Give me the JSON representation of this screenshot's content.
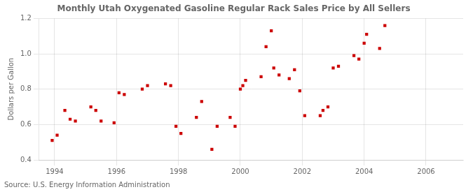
{
  "chart_data": {
    "type": "scatter",
    "title": "Monthly Utah Oxygenated Gasoline Regular Rack Sales Price by All Sellers",
    "ylabel": "Dollars per Gallon",
    "annotation": "Source: U.S. Energy Information Administration",
    "color": "#cc0000",
    "marker": "square",
    "grid": true,
    "xlim": [
      1993.5,
      2007.2
    ],
    "ylim": [
      0.4,
      1.2
    ],
    "xticks": [
      1994,
      1996,
      1998,
      2000,
      2002,
      2004,
      2006
    ],
    "yticks": [
      0.4,
      0.6,
      0.8,
      {
        "value": 1.0,
        "label": "1.0"
      },
      1.2
    ],
    "x": [
      1993.92,
      1994.08,
      1994.33,
      1994.5,
      1994.67,
      1995.17,
      1995.33,
      1995.5,
      1995.92,
      1996.08,
      1996.25,
      1996.83,
      1997.0,
      1997.58,
      1997.75,
      1997.92,
      1998.08,
      1998.58,
      1998.75,
      1999.08,
      1999.25,
      1999.67,
      1999.83,
      2000.0,
      2000.08,
      2000.17,
      2000.67,
      2000.83,
      2001.0,
      2001.08,
      2001.25,
      2001.58,
      2001.75,
      2001.92,
      2002.08,
      2002.58,
      2002.67,
      2002.83,
      2003.0,
      2003.17,
      2003.67,
      2003.83,
      2004.0,
      2004.08,
      2004.5,
      2004.67
    ],
    "values": [
      0.51,
      0.54,
      0.68,
      0.63,
      0.62,
      0.7,
      0.68,
      0.62,
      0.61,
      0.78,
      0.77,
      0.8,
      0.82,
      0.83,
      0.82,
      0.59,
      0.55,
      0.64,
      0.73,
      0.46,
      0.59,
      0.64,
      0.59,
      0.8,
      0.82,
      0.85,
      0.87,
      1.04,
      1.13,
      0.92,
      0.88,
      0.86,
      0.91,
      0.79,
      0.65,
      0.65,
      0.68,
      0.7,
      0.92,
      0.93,
      0.99,
      0.97,
      1.06,
      1.11,
      1.03,
      1.16
    ]
  }
}
